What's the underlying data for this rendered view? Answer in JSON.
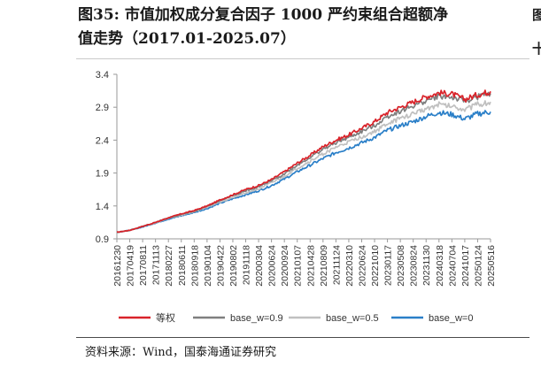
{
  "title_line1": "图35:  市值加权成分复合因子 1000 严约束组合超额净",
  "title_line2": "值走势（2017.01-2025.07）",
  "source": "资料来源：Wind，国泰海通证券研究",
  "colors": {
    "等权": "#d9232a",
    "base_w=0.9": "#7f7f7f",
    "base_w=0.5": "#c0c0c0",
    "base_w=0": "#2a7fc8",
    "axis": "#9a9a9a",
    "text": "#333333"
  },
  "chart_data": {
    "type": "line",
    "title": "",
    "xlabel": "",
    "ylabel": "",
    "ylim": [
      0.9,
      3.4
    ],
    "yticks": [
      "3.4",
      "2.9",
      "2.4",
      "1.9",
      "1.4",
      "0.9"
    ],
    "ytick_values": [
      3.4,
      2.9,
      2.4,
      1.9,
      1.4,
      0.9
    ],
    "categories": [
      "20161230",
      "20170419",
      "20170811",
      "20171113",
      "20180227",
      "20180611",
      "20180918",
      "20190104",
      "20190422",
      "20190802",
      "20191118",
      "20200304",
      "20200624",
      "20200924",
      "20210107",
      "20210428",
      "20210809",
      "20211124",
      "20220310",
      "20220624",
      "20221010",
      "20230117",
      "20230508",
      "20230824",
      "20231130",
      "20240318",
      "20240704",
      "20241017",
      "20250124",
      "20250516"
    ],
    "legend_position": "bottom",
    "series": [
      {
        "name": "等权",
        "values": [
          1.0,
          1.03,
          1.09,
          1.15,
          1.22,
          1.28,
          1.33,
          1.4,
          1.49,
          1.57,
          1.65,
          1.71,
          1.8,
          1.92,
          2.05,
          2.17,
          2.3,
          2.4,
          2.48,
          2.58,
          2.68,
          2.82,
          2.9,
          2.98,
          3.06,
          3.12,
          3.1,
          3.02,
          3.09,
          3.14
        ]
      },
      {
        "name": "base_w=0.9",
        "values": [
          1.0,
          1.03,
          1.09,
          1.15,
          1.22,
          1.27,
          1.32,
          1.39,
          1.48,
          1.56,
          1.63,
          1.69,
          1.78,
          1.89,
          2.02,
          2.14,
          2.26,
          2.36,
          2.44,
          2.53,
          2.62,
          2.76,
          2.84,
          2.92,
          3.0,
          3.07,
          3.05,
          2.99,
          3.06,
          3.11
        ]
      },
      {
        "name": "base_w=0.5",
        "values": [
          1.0,
          1.03,
          1.09,
          1.14,
          1.21,
          1.26,
          1.31,
          1.38,
          1.46,
          1.53,
          1.6,
          1.66,
          1.75,
          1.85,
          1.97,
          2.08,
          2.19,
          2.29,
          2.37,
          2.45,
          2.53,
          2.65,
          2.73,
          2.8,
          2.88,
          2.94,
          2.92,
          2.87,
          2.94,
          2.98
        ]
      },
      {
        "name": "base_w=0",
        "values": [
          1.0,
          1.03,
          1.08,
          1.14,
          1.2,
          1.25,
          1.3,
          1.36,
          1.44,
          1.51,
          1.57,
          1.63,
          1.71,
          1.81,
          1.92,
          2.02,
          2.12,
          2.21,
          2.28,
          2.36,
          2.44,
          2.55,
          2.62,
          2.68,
          2.76,
          2.82,
          2.79,
          2.72,
          2.8,
          2.83
        ]
      }
    ]
  },
  "edge_glyphs": [
    "图",
    "十"
  ]
}
